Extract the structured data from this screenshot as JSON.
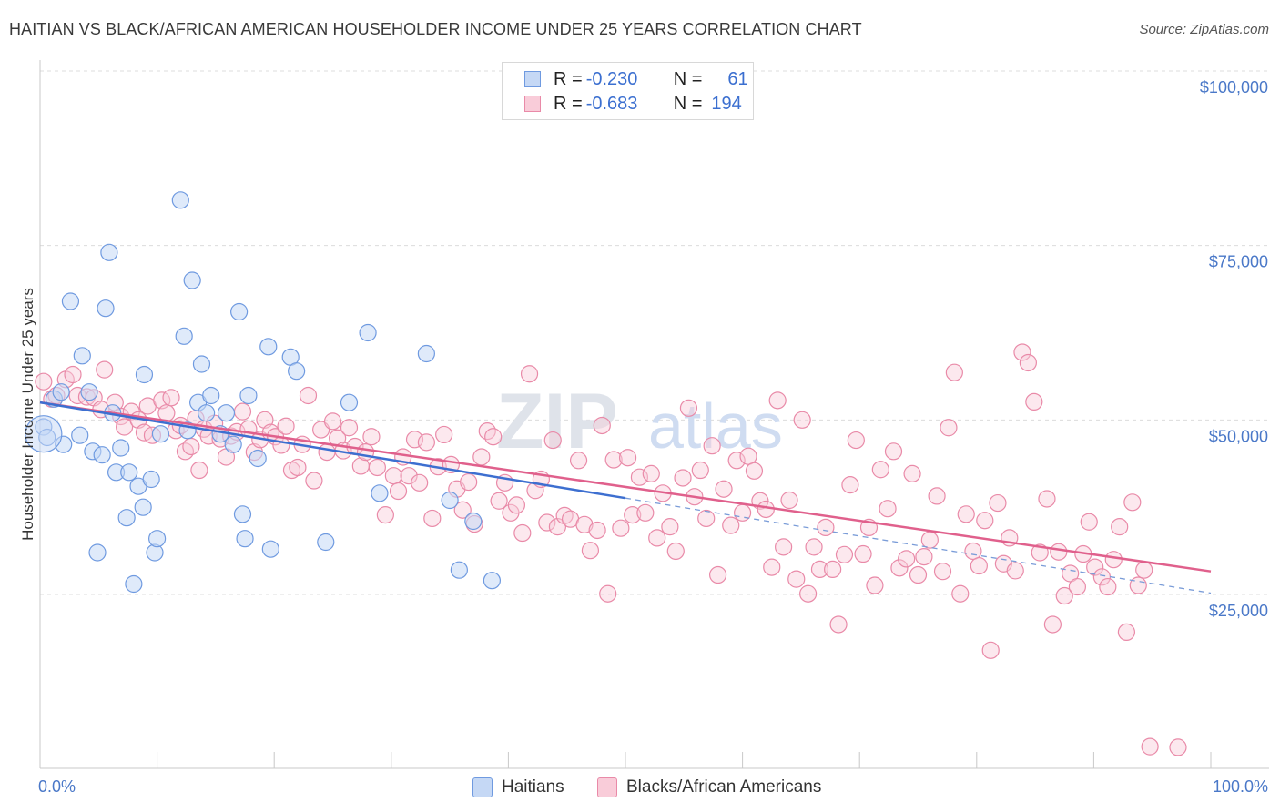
{
  "title": "HAITIAN VS BLACK/AFRICAN AMERICAN HOUSEHOLDER INCOME UNDER 25 YEARS CORRELATION CHART",
  "source": "Source: ZipAtlas.com",
  "watermark": "ZIPatlas",
  "legend": {
    "rows": [
      {
        "r_label": "R =",
        "r_value": "-0.230",
        "n_label": "N =",
        "n_value": "61",
        "color": "#6f9ae0",
        "fill": "#c5d8f5"
      },
      {
        "r_label": "R =",
        "r_value": "-0.683",
        "n_label": "N =",
        "n_value": "194",
        "color": "#e98aa8",
        "fill": "#f9ccd9"
      }
    ]
  },
  "bottom_legend": [
    {
      "label": "Haitians",
      "color": "#6f9ae0",
      "fill": "#c5d8f5"
    },
    {
      "label": "Blacks/African Americans",
      "color": "#e98aa8",
      "fill": "#f9ccd9"
    }
  ],
  "chart_data": {
    "type": "scatter",
    "title": "HAITIAN VS BLACK/AFRICAN AMERICAN HOUSEHOLDER INCOME UNDER 25 YEARS CORRELATION CHART",
    "xlabel": "",
    "ylabel": "Householder Income Under 25 years",
    "xlim": [
      0,
      100
    ],
    "ylim": [
      0,
      105000
    ],
    "x_tick_labels": [
      "0.0%",
      "100.0%"
    ],
    "y_ticks": [
      25000,
      50000,
      75000,
      100000
    ],
    "y_tick_labels": [
      "$25,000",
      "$50,000",
      "$75,000",
      "$100,000"
    ],
    "grid": true,
    "legend_position": "top-center",
    "series": [
      {
        "name": "Haitians",
        "color": "#6f9ae0",
        "fill": "#c5d8f5",
        "trend": {
          "x": [
            0,
            50
          ],
          "y": [
            52500,
            38800
          ]
        },
        "trend_extension": {
          "x": [
            50,
            100
          ],
          "y": [
            38800,
            25200
          ]
        },
        "points": [
          [
            0.3,
            49000
          ],
          [
            0.6,
            47500
          ],
          [
            1.2,
            53000
          ],
          [
            1.8,
            54000
          ],
          [
            2.0,
            46500
          ],
          [
            2.6,
            67000
          ],
          [
            3.4,
            47800
          ],
          [
            3.6,
            59200
          ],
          [
            4.2,
            54000
          ],
          [
            4.5,
            45500
          ],
          [
            4.9,
            31000
          ],
          [
            5.3,
            45000
          ],
          [
            5.6,
            66000
          ],
          [
            5.9,
            74000
          ],
          [
            6.2,
            51000
          ],
          [
            6.5,
            42500
          ],
          [
            6.9,
            46000
          ],
          [
            7.4,
            36000
          ],
          [
            7.6,
            42500
          ],
          [
            8.0,
            26500
          ],
          [
            8.4,
            40500
          ],
          [
            8.8,
            37500
          ],
          [
            8.9,
            56500
          ],
          [
            9.5,
            41500
          ],
          [
            9.8,
            31000
          ],
          [
            10.0,
            33000
          ],
          [
            10.3,
            48000
          ],
          [
            12.0,
            81500
          ],
          [
            12.3,
            62000
          ],
          [
            12.6,
            48500
          ],
          [
            13.0,
            70000
          ],
          [
            13.5,
            52500
          ],
          [
            13.8,
            58000
          ],
          [
            14.2,
            51000
          ],
          [
            14.6,
            53500
          ],
          [
            15.4,
            48000
          ],
          [
            15.9,
            51000
          ],
          [
            16.5,
            46500
          ],
          [
            17.0,
            65500
          ],
          [
            17.3,
            36500
          ],
          [
            17.5,
            33000
          ],
          [
            17.8,
            53500
          ],
          [
            18.6,
            44500
          ],
          [
            19.7,
            31500
          ],
          [
            19.5,
            60500
          ],
          [
            21.4,
            59000
          ],
          [
            21.9,
            57000
          ],
          [
            24.4,
            32500
          ],
          [
            26.4,
            52500
          ],
          [
            28.0,
            62500
          ],
          [
            29.0,
            39500
          ],
          [
            33.0,
            59500
          ],
          [
            35.0,
            38500
          ],
          [
            35.8,
            28500
          ],
          [
            37.0,
            35500
          ],
          [
            38.6,
            27000
          ]
        ]
      },
      {
        "name": "Blacks/African Americans",
        "color": "#e98aa8",
        "fill": "#f9ccd9",
        "trend": {
          "x": [
            0,
            100
          ],
          "y": [
            52500,
            28300
          ]
        },
        "points": [
          [
            0.3,
            55500
          ],
          [
            1.0,
            53000
          ],
          [
            1.4,
            53500
          ],
          [
            2.2,
            55800
          ],
          [
            2.8,
            56500
          ],
          [
            3.2,
            53500
          ],
          [
            4.0,
            53300
          ],
          [
            4.6,
            53200
          ],
          [
            5.2,
            51500
          ],
          [
            5.5,
            57200
          ],
          [
            6.4,
            52500
          ],
          [
            6.9,
            50500
          ],
          [
            7.2,
            49000
          ],
          [
            7.8,
            51200
          ],
          [
            8.4,
            50000
          ],
          [
            8.9,
            48200
          ],
          [
            9.2,
            52000
          ],
          [
            9.6,
            47800
          ],
          [
            10.4,
            52800
          ],
          [
            10.8,
            51000
          ],
          [
            11.2,
            53200
          ],
          [
            11.6,
            48500
          ],
          [
            12.0,
            49200
          ],
          [
            12.4,
            45500
          ],
          [
            12.9,
            46200
          ],
          [
            13.3,
            50200
          ],
          [
            13.6,
            42800
          ],
          [
            14.0,
            48700
          ],
          [
            14.4,
            47700
          ],
          [
            14.9,
            49500
          ],
          [
            15.4,
            47300
          ],
          [
            15.9,
            44700
          ],
          [
            16.3,
            47700
          ],
          [
            16.8,
            48300
          ],
          [
            17.3,
            51200
          ],
          [
            17.8,
            48700
          ],
          [
            18.3,
            45400
          ],
          [
            18.8,
            47200
          ],
          [
            19.2,
            50000
          ],
          [
            19.7,
            48200
          ],
          [
            20.1,
            47600
          ],
          [
            20.6,
            46400
          ],
          [
            21.0,
            49100
          ],
          [
            21.5,
            42800
          ],
          [
            22.0,
            43200
          ],
          [
            22.4,
            46500
          ],
          [
            22.9,
            53500
          ],
          [
            23.4,
            41300
          ],
          [
            24.0,
            48600
          ],
          [
            24.5,
            45400
          ],
          [
            25.0,
            49800
          ],
          [
            25.4,
            47400
          ],
          [
            25.9,
            45600
          ],
          [
            26.4,
            48900
          ],
          [
            26.9,
            46200
          ],
          [
            27.4,
            43400
          ],
          [
            27.8,
            45400
          ],
          [
            28.3,
            47600
          ],
          [
            28.8,
            43200
          ],
          [
            29.5,
            36400
          ],
          [
            30.2,
            42000
          ],
          [
            30.6,
            39800
          ],
          [
            31.0,
            44700
          ],
          [
            31.5,
            42000
          ],
          [
            32.0,
            47200
          ],
          [
            32.4,
            41000
          ],
          [
            33.0,
            46800
          ],
          [
            33.5,
            35900
          ],
          [
            34.0,
            43300
          ],
          [
            34.5,
            47900
          ],
          [
            35.1,
            43600
          ],
          [
            35.6,
            40100
          ],
          [
            36.1,
            37100
          ],
          [
            36.6,
            41100
          ],
          [
            37.1,
            35100
          ],
          [
            37.7,
            44700
          ],
          [
            38.2,
            48400
          ],
          [
            38.7,
            47600
          ],
          [
            39.2,
            38400
          ],
          [
            39.7,
            41000
          ],
          [
            40.2,
            36700
          ],
          [
            40.7,
            37800
          ],
          [
            41.2,
            33800
          ],
          [
            41.8,
            56600
          ],
          [
            42.3,
            39900
          ],
          [
            42.8,
            41500
          ],
          [
            43.3,
            35300
          ],
          [
            43.8,
            47100
          ],
          [
            44.2,
            34700
          ],
          [
            44.8,
            36300
          ],
          [
            45.3,
            35800
          ],
          [
            46.0,
            44200
          ],
          [
            46.5,
            35000
          ],
          [
            47.0,
            31300
          ],
          [
            47.6,
            34200
          ],
          [
            48.0,
            49200
          ],
          [
            48.5,
            25100
          ],
          [
            49.0,
            44300
          ],
          [
            49.6,
            34500
          ],
          [
            50.2,
            44600
          ],
          [
            50.6,
            36400
          ],
          [
            51.2,
            41800
          ],
          [
            51.7,
            36700
          ],
          [
            52.2,
            42300
          ],
          [
            52.7,
            33100
          ],
          [
            53.2,
            39500
          ],
          [
            53.8,
            34700
          ],
          [
            54.3,
            31200
          ],
          [
            54.9,
            41700
          ],
          [
            55.4,
            51700
          ],
          [
            55.9,
            39000
          ],
          [
            56.4,
            42800
          ],
          [
            56.9,
            35900
          ],
          [
            57.4,
            46300
          ],
          [
            57.9,
            27800
          ],
          [
            58.4,
            40100
          ],
          [
            59.0,
            34900
          ],
          [
            59.5,
            44200
          ],
          [
            60.0,
            36700
          ],
          [
            60.5,
            44800
          ],
          [
            61.0,
            42700
          ],
          [
            61.5,
            38400
          ],
          [
            62.0,
            37200
          ],
          [
            62.5,
            28900
          ],
          [
            63.0,
            52800
          ],
          [
            63.5,
            31800
          ],
          [
            64.0,
            38500
          ],
          [
            64.6,
            27200
          ],
          [
            65.1,
            50000
          ],
          [
            65.6,
            25100
          ],
          [
            66.1,
            31800
          ],
          [
            66.6,
            28600
          ],
          [
            67.1,
            34600
          ],
          [
            67.7,
            28600
          ],
          [
            68.2,
            20700
          ],
          [
            68.7,
            30700
          ],
          [
            69.2,
            40700
          ],
          [
            69.7,
            47100
          ],
          [
            70.3,
            30800
          ],
          [
            70.8,
            34600
          ],
          [
            71.3,
            26300
          ],
          [
            71.8,
            42900
          ],
          [
            72.4,
            37300
          ],
          [
            72.9,
            45500
          ],
          [
            73.4,
            28800
          ],
          [
            74.0,
            30100
          ],
          [
            74.5,
            42300
          ],
          [
            75.0,
            27800
          ],
          [
            75.5,
            30400
          ],
          [
            76.0,
            32800
          ],
          [
            76.6,
            39100
          ],
          [
            77.1,
            28300
          ],
          [
            77.6,
            48900
          ],
          [
            78.1,
            56800
          ],
          [
            78.6,
            25100
          ],
          [
            79.1,
            36500
          ],
          [
            79.7,
            31200
          ],
          [
            80.2,
            29100
          ],
          [
            80.7,
            35600
          ],
          [
            81.2,
            17000
          ],
          [
            81.8,
            38100
          ],
          [
            82.3,
            29400
          ],
          [
            82.8,
            33100
          ],
          [
            83.3,
            28400
          ],
          [
            83.9,
            59700
          ],
          [
            84.4,
            58200
          ],
          [
            84.9,
            52600
          ],
          [
            85.4,
            31000
          ],
          [
            86.0,
            38700
          ],
          [
            86.5,
            20700
          ],
          [
            87.0,
            31100
          ],
          [
            87.5,
            24800
          ],
          [
            88.0,
            28000
          ],
          [
            88.6,
            26100
          ],
          [
            89.1,
            30800
          ],
          [
            89.6,
            35400
          ],
          [
            90.1,
            28900
          ],
          [
            90.7,
            27500
          ],
          [
            91.2,
            26100
          ],
          [
            91.7,
            30000
          ],
          [
            92.2,
            34700
          ],
          [
            92.8,
            19600
          ],
          [
            93.3,
            38200
          ],
          [
            93.8,
            26300
          ],
          [
            94.3,
            28500
          ],
          [
            94.8,
            3200
          ],
          [
            97.2,
            3100
          ]
        ]
      }
    ]
  }
}
